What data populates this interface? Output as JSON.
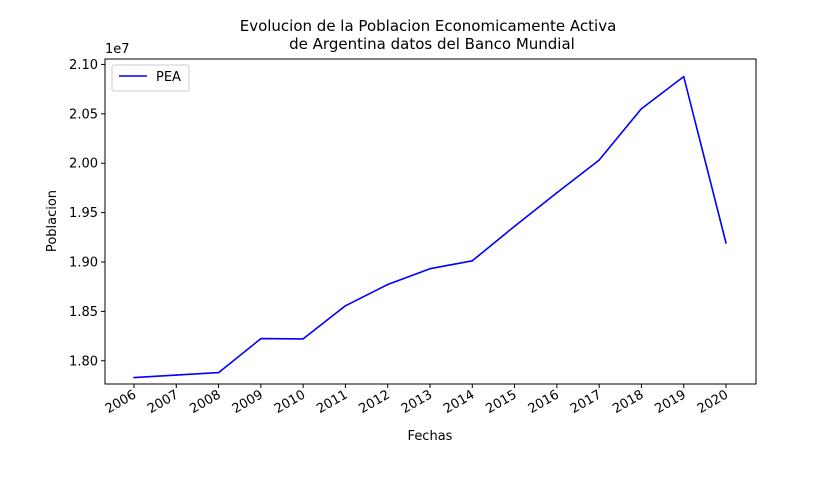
{
  "chart_data": {
    "type": "line",
    "title_line1": "Evolucion de la Poblacion Economicamente Activa",
    "title_line2": "de Argentina datos del Banco Mundial",
    "xlabel": "Fechas",
    "ylabel": "Poblacion",
    "y_offset_label": "1e7",
    "categories": [
      "2006",
      "2007",
      "2008",
      "2009",
      "2010",
      "2011",
      "2012",
      "2013",
      "2014",
      "2015",
      "2016",
      "2017",
      "2018",
      "2019",
      "2020"
    ],
    "y_ticks": [
      "1.80",
      "1.85",
      "1.90",
      "1.95",
      "2.00",
      "2.05",
      "2.10"
    ],
    "ylim": [
      1.7765,
      2.1055
    ],
    "series": [
      {
        "name": "PEA",
        "color": "#0000ff",
        "values": [
          1.783,
          1.7855,
          1.788,
          1.8225,
          1.8222,
          1.8557,
          1.8772,
          1.8932,
          1.9012,
          1.9362,
          1.9702,
          2.0032,
          2.0552,
          2.0877,
          1.9192
        ]
      }
    ],
    "legend_position": "upper left",
    "grid": false
  }
}
